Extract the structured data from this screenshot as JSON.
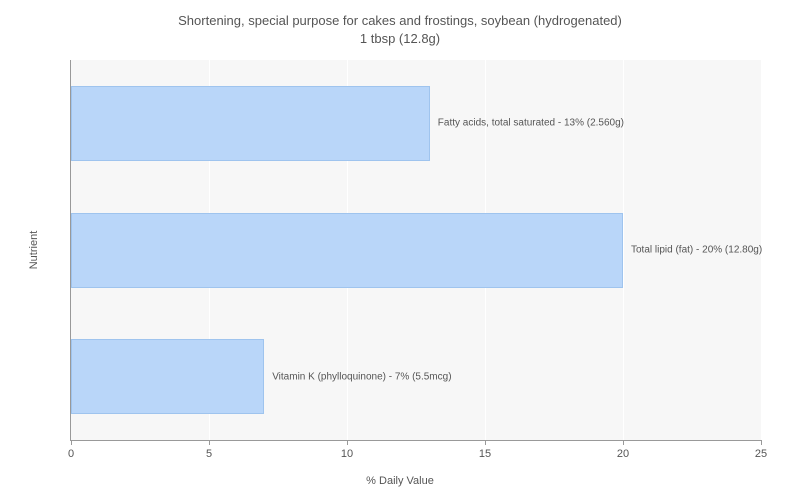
{
  "chart": {
    "type": "bar-horizontal",
    "title_line1": "Shortening, special purpose for cakes and frostings, soybean (hydrogenated)",
    "title_line2": "1 tbsp (12.8g)",
    "title_fontsize": 13,
    "title_color": "#555555",
    "background_color": "#ffffff",
    "plot_background": "#f7f7f7",
    "gridline_color": "#ffffff",
    "axis_color": "#999999",
    "x_axis_title": "% Daily Value",
    "y_axis_title": "Nutrient",
    "axis_title_fontsize": 11,
    "xlim": [
      0,
      25
    ],
    "xtick_step": 5,
    "xticks": [
      0,
      5,
      10,
      15,
      20,
      25
    ],
    "bar_color": "#b9d6f9",
    "bar_border_color": "#9fc4ee",
    "label_fontsize": 10,
    "tick_fontsize": 11,
    "bars": [
      {
        "value": 13,
        "label": "Fatty acids, total saturated - 13% (2.560g)"
      },
      {
        "value": 20,
        "label": "Total lipid (fat) - 20% (12.80g)"
      },
      {
        "value": 7,
        "label": "Vitamin K (phylloquinone) - 7% (5.5mcg)"
      }
    ]
  }
}
